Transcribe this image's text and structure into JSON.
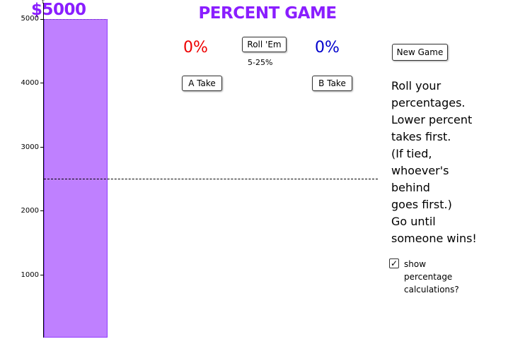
{
  "title": "PERCENT GAME",
  "pot": "$5000",
  "axis": {
    "ticks": [
      "5000",
      "4000",
      "3000",
      "2000",
      "1000"
    ],
    "max": 5000
  },
  "bar": {
    "value": 5000,
    "color": "#bf80ff"
  },
  "threshold": 2500,
  "players": {
    "a": {
      "percent": "0%",
      "color": "#ee0000",
      "take_label": "A Take"
    },
    "b": {
      "percent": "0%",
      "color": "#0000cc",
      "take_label": "B Take"
    }
  },
  "roll": {
    "label": "Roll 'Em",
    "range": "5-25%"
  },
  "new_game_label": "New Game",
  "instructions": [
    "Roll your",
    "percentages.",
    "Lower percent",
    "takes first.",
    "(If tied,",
    "whoever's",
    "behind",
    "goes first.)",
    "Go until",
    "someone wins!"
  ],
  "show_calc": {
    "checked": true,
    "check_mark": "✓",
    "lines": [
      "show",
      "percentage",
      "calculations?"
    ]
  }
}
